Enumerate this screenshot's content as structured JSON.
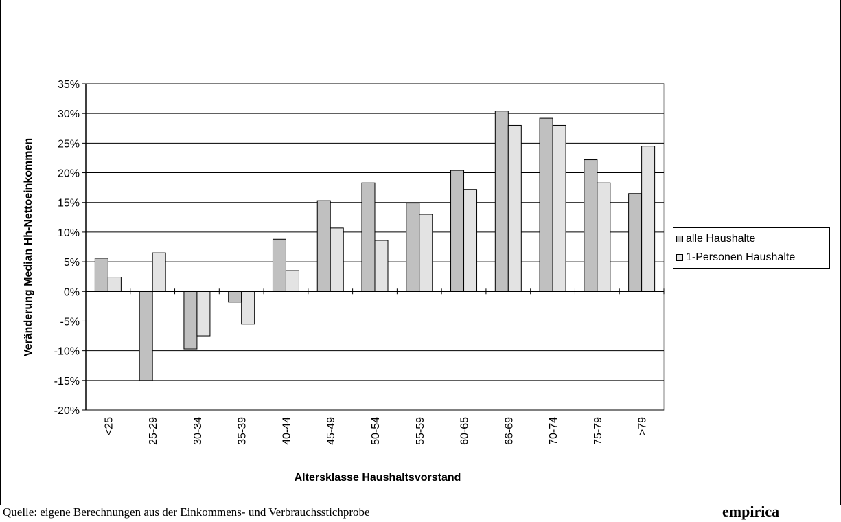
{
  "chart_data": {
    "type": "bar",
    "title": "",
    "xlabel": "Altersklasse Haushaltsvorstand",
    "ylabel": "Veränderung Median Hh-Nettoeinkommen",
    "ylim": [
      -20,
      35
    ],
    "y_ticks": [
      "-20%",
      "-15%",
      "-10%",
      "-5%",
      "0%",
      "5%",
      "10%",
      "15%",
      "20%",
      "25%",
      "30%",
      "35%"
    ],
    "y_tick_values": [
      -20,
      -15,
      -10,
      -5,
      0,
      5,
      10,
      15,
      20,
      25,
      30,
      35
    ],
    "grid": true,
    "legend_position": "right",
    "categories": [
      "<25",
      "25-29",
      "30-34",
      "35-39",
      "40-44",
      "45-49",
      "50-54",
      "55-59",
      "60-65",
      "66-69",
      "70-74",
      "75-79",
      ">79"
    ],
    "series": [
      {
        "name": "alle Haushalte",
        "color": "#c0c0c0",
        "values": [
          5.6,
          -15.0,
          -9.7,
          -1.8,
          8.8,
          15.3,
          18.3,
          14.9,
          20.4,
          30.4,
          29.2,
          22.2,
          16.5
        ]
      },
      {
        "name": "1-Personen Haushalte",
        "color": "#e3e3e3",
        "values": [
          2.4,
          6.5,
          -7.5,
          -5.5,
          3.5,
          10.7,
          8.6,
          13.0,
          17.2,
          28.0,
          28.0,
          18.3,
          24.5
        ]
      }
    ]
  },
  "footer": {
    "source": "Quelle: eigene Berechnungen aus der Einkommens- und Verbrauchsstichprobe",
    "brand": "empirica"
  }
}
